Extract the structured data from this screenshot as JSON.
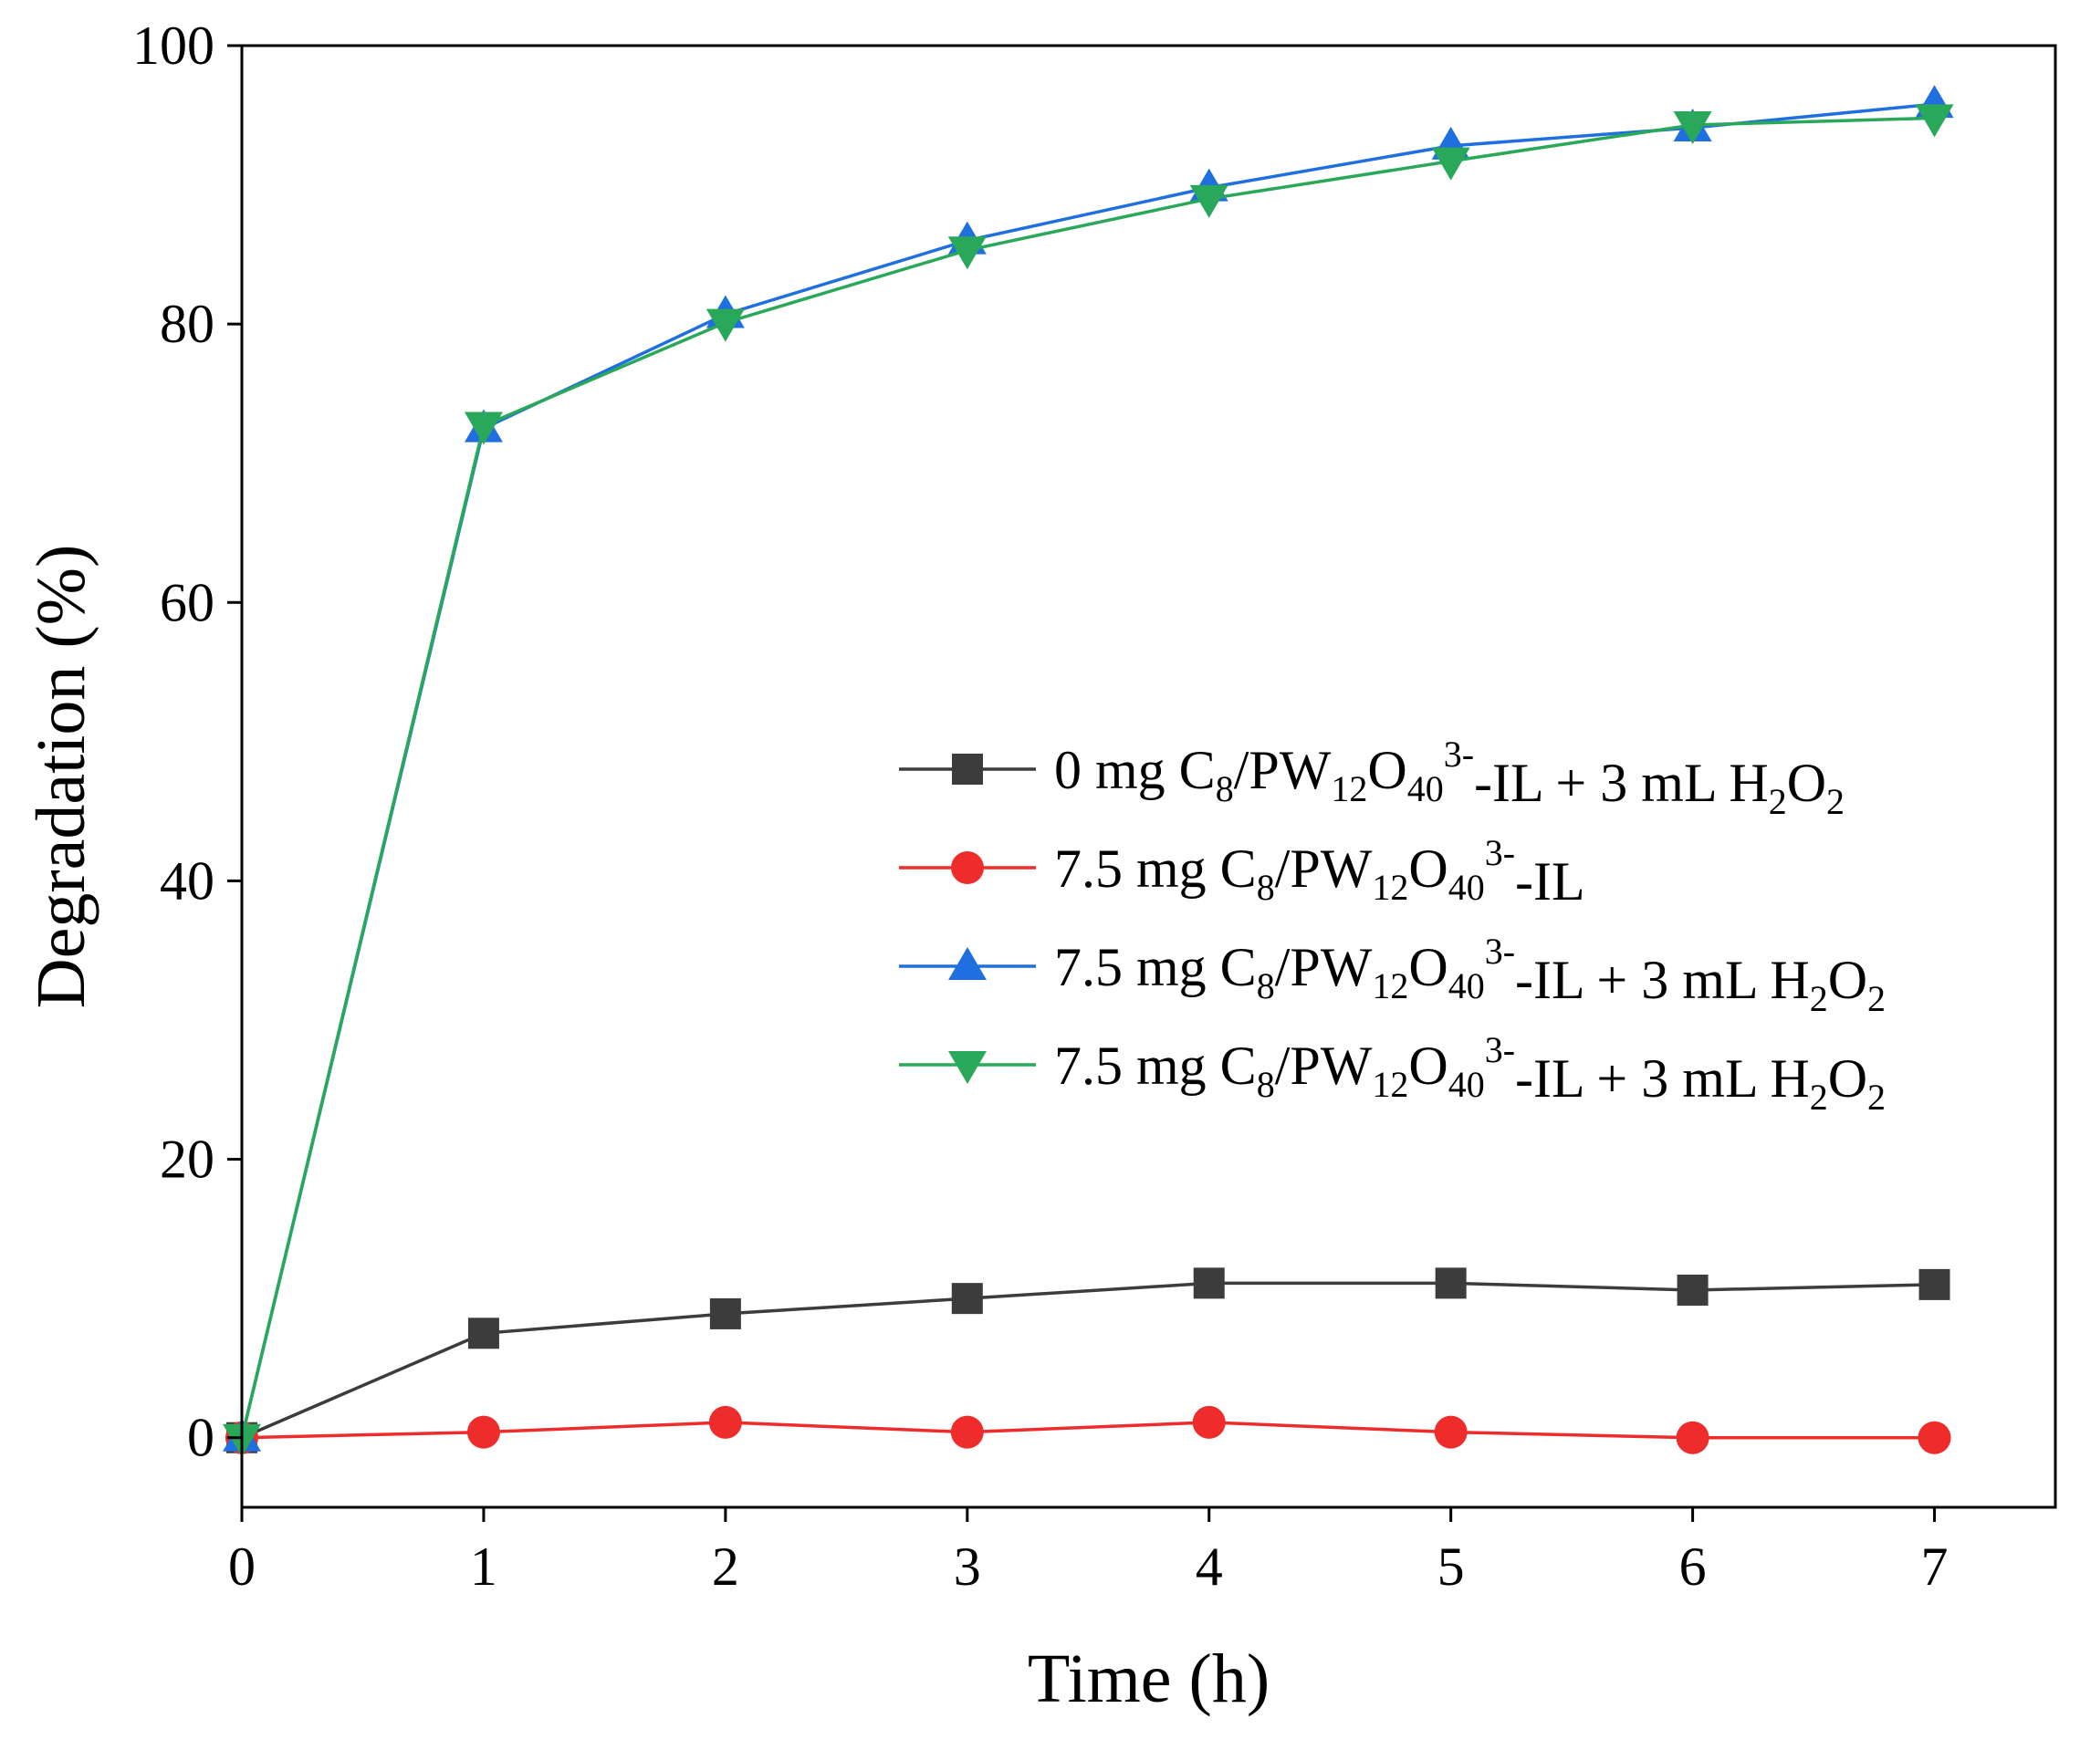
{
  "chart_data": {
    "type": "line",
    "title": "",
    "xlabel": "Time (h)",
    "ylabel": "Degradation (%)",
    "xlim": [
      0,
      7.5
    ],
    "ylim": [
      -5,
      100
    ],
    "xticks": [
      0,
      1,
      2,
      3,
      4,
      5,
      6,
      7
    ],
    "yticks": [
      0,
      20,
      40,
      60,
      80,
      100
    ],
    "x": [
      0,
      1,
      2,
      3,
      4,
      5,
      6,
      7
    ],
    "grid": false,
    "legend_position": "center-right",
    "series": [
      {
        "name": "0 mg C8/PW12O40 3- -IL + 3 mL H2O2",
        "label_parts": [
          [
            "0 mg C",
            ""
          ],
          [
            "8",
            "sub"
          ],
          [
            "/PW",
            ""
          ],
          [
            "12",
            "sub"
          ],
          [
            "O",
            ""
          ],
          [
            "40",
            "sub"
          ],
          [
            "3-",
            "sup"
          ],
          [
            "-IL + 3 mL H",
            ""
          ],
          [
            "2",
            "sub"
          ],
          [
            "O",
            ""
          ],
          [
            "2",
            "sub"
          ]
        ],
        "color": "#3c3c3c",
        "marker": "square",
        "values": [
          0,
          7.5,
          8.9,
          10.0,
          11.1,
          11.1,
          10.6,
          11.0
        ]
      },
      {
        "name": "7.5 mg C8/PW12O40 3- -IL",
        "label_parts": [
          [
            "7.5 mg C",
            ""
          ],
          [
            "8",
            "sub"
          ],
          [
            "/PW",
            ""
          ],
          [
            "12",
            "sub"
          ],
          [
            "O",
            ""
          ],
          [
            "40",
            "sub"
          ],
          [
            "3-",
            "sup"
          ],
          [
            "-IL",
            ""
          ]
        ],
        "color": "#ee2c2c",
        "marker": "circle",
        "values": [
          0,
          0.4,
          1.1,
          0.4,
          1.1,
          0.4,
          0,
          0
        ]
      },
      {
        "name": "7.5 mg C8/PW12O40 3- -IL + 3 mL H2O2",
        "label_parts": [
          [
            "7.5 mg C",
            ""
          ],
          [
            "8",
            "sub"
          ],
          [
            "/PW",
            ""
          ],
          [
            "12",
            "sub"
          ],
          [
            "O",
            ""
          ],
          [
            "40",
            "sub"
          ],
          [
            "3-",
            "sup"
          ],
          [
            "-IL + 3 mL H",
            ""
          ],
          [
            "2",
            "sub"
          ],
          [
            "O",
            ""
          ],
          [
            "2",
            "sub"
          ]
        ],
        "color": "#1f6fe0",
        "marker": "triangle-up",
        "values": [
          0,
          72.5,
          80.7,
          86.0,
          89.8,
          92.8,
          94.1,
          95.8
        ]
      },
      {
        "name": "7.5 mg C8/PW12O40 3- -IL + 3 mL H2O2",
        "label_parts": [
          [
            "7.5 mg C",
            ""
          ],
          [
            "8",
            "sub"
          ],
          [
            "/PW",
            ""
          ],
          [
            "12",
            "sub"
          ],
          [
            "O",
            ""
          ],
          [
            "40",
            "sub"
          ],
          [
            "3-",
            "sup"
          ],
          [
            "-IL + 3 mL H",
            ""
          ],
          [
            "2",
            "sub"
          ],
          [
            "O",
            ""
          ],
          [
            "2",
            "sub"
          ]
        ],
        "color": "#2aa85a",
        "marker": "triangle-down",
        "values": [
          0,
          72.7,
          80.1,
          85.3,
          89.0,
          91.7,
          94.3,
          94.8
        ]
      }
    ]
  }
}
